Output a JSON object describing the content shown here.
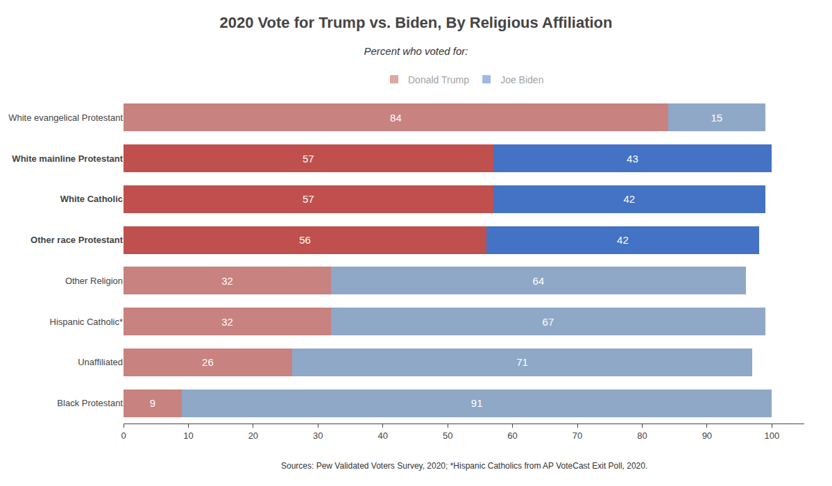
{
  "chart_data": {
    "type": "bar",
    "orientation": "horizontal",
    "stacked": true,
    "title": "2020 Vote for Trump vs. Biden, By Religious Affiliation",
    "subtitle": "Percent who voted for:",
    "annotations": [
      "Sources: Pew Validated Voters Survey, 2020; *Hispanic Catholics from AP VoteCast Exit Poll, 2020."
    ],
    "categories": [
      "White evangelical Protestant",
      "White mainline Protestant",
      "White Catholic",
      "Other race Protestant",
      "Other Religion",
      "Hispanic Catholic*",
      "Unaffiliated",
      "Black Protestant"
    ],
    "series": [
      {
        "name": "Donald Trump",
        "color": "#c0504d",
        "colors": [
          "#c8827f",
          "#c0504d",
          "#c0504d",
          "#c0504d",
          "#c8827f",
          "#c8827f",
          "#c8827f",
          "#c8827f"
        ],
        "values": [
          84,
          57,
          57,
          56,
          32,
          32,
          26,
          9
        ]
      },
      {
        "name": "Joe Biden",
        "color": "#4472c4",
        "colors": [
          "#8fa8c8",
          "#4472c4",
          "#4472c4",
          "#4472c4",
          "#8fa8c8",
          "#8fa8c8",
          "#8fa8c8",
          "#8fa8c8"
        ],
        "values": [
          15,
          43,
          42,
          42,
          64,
          67,
          71,
          91
        ]
      }
    ],
    "xlim": [
      0,
      105
    ],
    "xticks": [
      0,
      10,
      20,
      30,
      40,
      50,
      60,
      70,
      80,
      90,
      100
    ],
    "data_labels": true,
    "grid": false,
    "legend": "top"
  }
}
